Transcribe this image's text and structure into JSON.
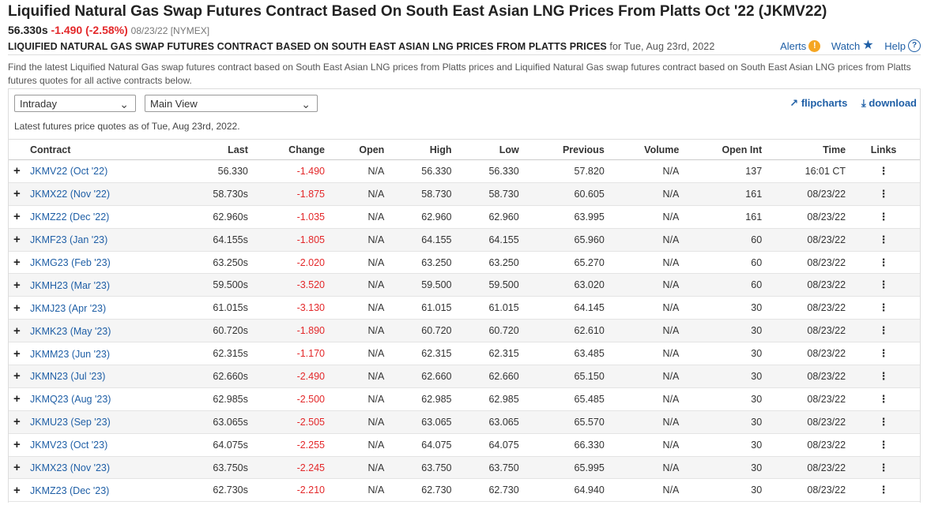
{
  "header": {
    "title": "Liquified Natural Gas Swap Futures Contract Based On South East Asian LNG Prices From Platts Oct '22 (JKMV22)",
    "last": "56.330s",
    "change": "-1.490 (-2.58%)",
    "meta": "08/23/22 [NYMEX]",
    "subtitle": "LIQUIFIED NATURAL GAS SWAP FUTURES CONTRACT BASED ON SOUTH EAST ASIAN LNG PRICES FROM PLATTS PRICES",
    "subtitle_for": "for Tue, Aug 23rd, 2022"
  },
  "tools": {
    "alerts": "Alerts",
    "watch": "Watch",
    "help": "Help"
  },
  "description": "Find the latest Liquified Natural Gas swap futures contract based on South East Asian LNG prices from Platts prices and Liquified Natural Gas swap futures contract based on South East Asian LNG prices from Platts futures quotes for all active contracts below.",
  "controls": {
    "view_select": "Intraday",
    "layout_select": "Main View",
    "flipcharts": "flipcharts",
    "download": "download",
    "asof": "Latest futures price quotes as of Tue, Aug 23rd, 2022."
  },
  "table": {
    "headers": [
      "Contract",
      "Last",
      "Change",
      "Open",
      "High",
      "Low",
      "Previous",
      "Volume",
      "Open Int",
      "Time",
      "Links"
    ],
    "rows": [
      [
        "JKMV22 (Oct '22)",
        "56.330",
        "-1.490",
        "N/A",
        "56.330",
        "56.330",
        "57.820",
        "N/A",
        "137",
        "16:01 CT"
      ],
      [
        "JKMX22 (Nov '22)",
        "58.730s",
        "-1.875",
        "N/A",
        "58.730",
        "58.730",
        "60.605",
        "N/A",
        "161",
        "08/23/22"
      ],
      [
        "JKMZ22 (Dec '22)",
        "62.960s",
        "-1.035",
        "N/A",
        "62.960",
        "62.960",
        "63.995",
        "N/A",
        "161",
        "08/23/22"
      ],
      [
        "JKMF23 (Jan '23)",
        "64.155s",
        "-1.805",
        "N/A",
        "64.155",
        "64.155",
        "65.960",
        "N/A",
        "60",
        "08/23/22"
      ],
      [
        "JKMG23 (Feb '23)",
        "63.250s",
        "-2.020",
        "N/A",
        "63.250",
        "63.250",
        "65.270",
        "N/A",
        "60",
        "08/23/22"
      ],
      [
        "JKMH23 (Mar '23)",
        "59.500s",
        "-3.520",
        "N/A",
        "59.500",
        "59.500",
        "63.020",
        "N/A",
        "60",
        "08/23/22"
      ],
      [
        "JKMJ23 (Apr '23)",
        "61.015s",
        "-3.130",
        "N/A",
        "61.015",
        "61.015",
        "64.145",
        "N/A",
        "30",
        "08/23/22"
      ],
      [
        "JKMK23 (May '23)",
        "60.720s",
        "-1.890",
        "N/A",
        "60.720",
        "60.720",
        "62.610",
        "N/A",
        "30",
        "08/23/22"
      ],
      [
        "JKMM23 (Jun '23)",
        "62.315s",
        "-1.170",
        "N/A",
        "62.315",
        "62.315",
        "63.485",
        "N/A",
        "30",
        "08/23/22"
      ],
      [
        "JKMN23 (Jul '23)",
        "62.660s",
        "-2.490",
        "N/A",
        "62.660",
        "62.660",
        "65.150",
        "N/A",
        "30",
        "08/23/22"
      ],
      [
        "JKMQ23 (Aug '23)",
        "62.985s",
        "-2.500",
        "N/A",
        "62.985",
        "62.985",
        "65.485",
        "N/A",
        "30",
        "08/23/22"
      ],
      [
        "JKMU23 (Sep '23)",
        "63.065s",
        "-2.505",
        "N/A",
        "63.065",
        "63.065",
        "65.570",
        "N/A",
        "30",
        "08/23/22"
      ],
      [
        "JKMV23 (Oct '23)",
        "64.075s",
        "-2.255",
        "N/A",
        "64.075",
        "64.075",
        "66.330",
        "N/A",
        "30",
        "08/23/22"
      ],
      [
        "JKMX23 (Nov '23)",
        "63.750s",
        "-2.245",
        "N/A",
        "63.750",
        "63.750",
        "65.995",
        "N/A",
        "30",
        "08/23/22"
      ],
      [
        "JKMZ23 (Dec '23)",
        "62.730s",
        "-2.210",
        "N/A",
        "62.730",
        "62.730",
        "64.940",
        "N/A",
        "30",
        "08/23/22"
      ]
    ]
  },
  "colors": {
    "link": "#1f5fa6",
    "negative": "#e3282a",
    "alert": "#f5a623"
  }
}
